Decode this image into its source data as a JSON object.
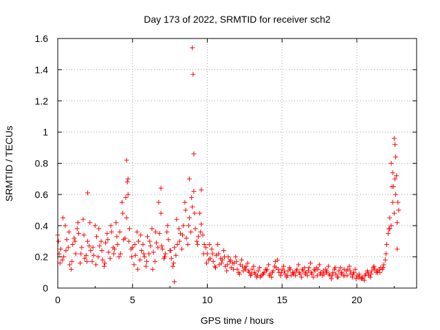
{
  "chart_data": {
    "type": "scatter",
    "title": "Day 173 of 2022, SRMTID for receiver sch2",
    "xlabel": "GPS time / hours",
    "ylabel": "SRMTID / TECUs",
    "xlim": [
      0,
      24
    ],
    "ylim": [
      0,
      1.6
    ],
    "xticks": [
      0,
      5,
      10,
      15,
      20
    ],
    "xtick_labels": [
      "0",
      "5",
      "10",
      "15",
      "20"
    ],
    "yticks": [
      0,
      0.2,
      0.4,
      0.6,
      0.8,
      1.0,
      1.2,
      1.4,
      1.6
    ],
    "ytick_labels": [
      "0",
      "0.2",
      "0.4",
      "0.6",
      "0.8",
      "1",
      "1.2",
      "1.4",
      "1.6"
    ],
    "grid": true,
    "marker": "+",
    "color": "#ff0000",
    "series": [
      {
        "name": "SRMTID",
        "x": [
          0.0,
          0.2,
          0.4,
          0.6,
          0.8,
          1.0,
          1.2,
          1.4,
          1.6,
          1.8,
          2.0,
          2.2,
          2.4,
          2.6,
          2.8,
          3.0,
          3.2,
          3.4,
          3.6,
          3.8,
          4.0,
          4.2,
          4.4,
          4.6,
          4.8,
          5.0,
          5.2,
          5.4,
          5.6,
          5.8,
          6.0,
          6.2,
          6.4,
          6.6,
          6.8,
          7.0,
          7.2,
          7.4,
          7.6,
          7.8,
          8.0,
          8.2,
          8.4,
          8.6,
          8.8,
          9.0,
          9.2,
          9.4,
          9.6,
          9.8,
          10.0,
          10.2,
          10.4,
          10.6,
          10.8,
          11.0,
          11.2,
          11.4,
          11.6,
          11.8,
          12.0,
          12.2,
          12.4,
          12.6,
          12.8,
          13.0,
          13.2,
          13.4,
          13.6,
          13.8,
          14.0,
          14.2,
          14.4,
          14.6,
          14.8,
          15.0,
          15.2,
          15.4,
          15.6,
          15.8,
          16.0,
          16.2,
          16.4,
          16.6,
          16.8,
          17.0,
          17.2,
          17.4,
          17.6,
          17.8,
          18.0,
          18.2,
          18.4,
          18.6,
          18.8,
          19.0,
          19.2,
          19.4,
          19.6,
          19.8,
          20.0,
          20.2,
          20.4,
          20.6,
          20.8,
          21.0,
          21.2,
          21.4,
          21.6,
          21.8,
          22.0,
          22.2,
          22.4,
          22.6,
          22.8,
          0.1,
          0.3,
          0.5,
          0.7,
          0.9,
          1.1,
          1.3,
          1.5,
          1.7,
          1.9,
          2.1,
          2.3,
          2.5,
          2.7,
          2.9,
          3.1,
          3.3,
          3.5,
          3.7,
          3.9,
          4.1,
          4.3,
          4.5,
          4.7,
          4.9,
          5.1,
          5.3,
          5.5,
          5.7,
          5.9,
          6.1,
          6.3,
          6.5,
          6.7,
          6.9,
          7.1,
          7.3,
          7.5,
          7.7,
          7.9,
          8.1,
          8.3,
          8.5,
          8.7,
          8.9,
          9.1,
          9.3,
          9.5,
          9.7,
          9.9,
          10.1,
          10.3,
          10.5,
          10.7,
          10.9,
          11.1,
          11.3,
          11.5,
          11.7,
          11.9,
          12.1,
          12.3,
          12.5,
          12.7,
          12.9,
          13.1,
          13.3,
          13.5,
          13.7,
          13.9,
          14.1,
          14.3,
          14.5,
          14.7,
          14.9,
          15.1,
          15.3,
          15.5,
          15.7,
          15.9,
          16.1,
          16.3,
          16.5,
          16.7,
          16.9,
          17.1,
          17.3,
          17.5,
          17.7,
          17.9,
          18.1,
          18.3,
          18.5,
          18.7,
          18.9,
          19.1,
          19.3,
          19.5,
          19.7,
          19.9,
          20.1,
          20.3,
          20.5,
          20.7,
          20.9,
          21.1,
          21.3,
          21.5,
          21.7,
          21.9,
          22.1,
          22.3,
          22.5,
          22.7,
          0.05,
          0.15,
          0.35,
          0.55,
          0.75,
          0.95,
          1.15,
          1.35,
          1.55,
          1.75,
          1.95,
          2.15,
          2.35,
          2.55,
          2.75,
          2.95,
          3.15,
          3.35,
          3.55,
          3.75,
          3.95,
          4.15,
          4.35,
          4.55,
          4.75,
          4.95,
          5.15,
          5.35,
          5.55,
          5.75,
          5.95,
          6.15,
          6.35,
          6.55,
          6.75,
          6.95,
          7.15,
          7.35,
          7.55,
          7.75,
          7.95,
          8.15,
          8.35,
          8.55,
          8.75,
          8.95,
          9.15,
          9.35,
          9.55,
          9.75,
          9.95,
          10.15,
          10.35,
          10.55,
          10.75,
          10.95,
          11.15,
          11.35,
          11.55,
          11.75,
          11.95,
          12.15,
          12.35,
          12.55,
          12.75,
          12.95,
          13.15,
          13.35,
          13.55,
          13.75,
          13.95,
          14.15,
          14.35,
          14.55,
          14.75,
          14.95,
          15.15,
          15.35,
          15.55,
          15.75,
          15.95,
          16.15,
          16.35,
          16.55,
          16.75,
          16.95,
          17.15,
          17.35,
          17.55,
          17.75,
          17.95,
          18.15,
          18.35,
          18.55,
          18.75,
          18.95,
          19.15,
          19.35,
          19.55,
          19.75,
          19.95,
          20.15,
          20.35,
          20.55,
          20.75,
          20.95,
          21.15,
          21.35,
          21.55,
          21.75,
          21.95,
          22.15,
          22.35,
          22.55,
          22.75,
          4.6,
          4.65,
          4.7,
          9.0,
          9.05,
          9.1,
          22.3,
          22.4,
          22.45,
          22.5,
          22.55,
          22.6,
          22.65,
          7.8,
          6.9,
          2.0,
          8.8,
          9.6,
          22.2,
          22.7
        ],
        "y": [
          0.34,
          0.25,
          0.2,
          0.31,
          0.15,
          0.28,
          0.22,
          0.35,
          0.26,
          0.19,
          0.3,
          0.24,
          0.21,
          0.33,
          0.27,
          0.18,
          0.29,
          0.23,
          0.36,
          0.25,
          0.28,
          0.22,
          0.31,
          0.45,
          0.38,
          0.26,
          0.21,
          0.3,
          0.24,
          0.2,
          0.33,
          0.27,
          0.23,
          0.29,
          0.35,
          0.25,
          0.22,
          0.31,
          0.19,
          0.26,
          0.28,
          0.35,
          0.4,
          0.32,
          0.45,
          0.52,
          0.38,
          0.33,
          0.41,
          0.28,
          0.22,
          0.19,
          0.17,
          0.21,
          0.15,
          0.18,
          0.14,
          0.2,
          0.13,
          0.16,
          0.12,
          0.15,
          0.11,
          0.14,
          0.1,
          0.12,
          0.09,
          0.11,
          0.08,
          0.1,
          0.12,
          0.09,
          0.11,
          0.13,
          0.1,
          0.12,
          0.09,
          0.11,
          0.08,
          0.1,
          0.12,
          0.09,
          0.11,
          0.1,
          0.13,
          0.09,
          0.11,
          0.12,
          0.1,
          0.09,
          0.11,
          0.08,
          0.1,
          0.09,
          0.11,
          0.1,
          0.08,
          0.12,
          0.09,
          0.1,
          0.08,
          0.07,
          0.06,
          0.09,
          0.08,
          0.11,
          0.12,
          0.1,
          0.13,
          0.15,
          0.28,
          0.45,
          0.55,
          0.6,
          0.5,
          0.22,
          0.18,
          0.4,
          0.26,
          0.12,
          0.32,
          0.38,
          0.16,
          0.44,
          0.21,
          0.27,
          0.17,
          0.4,
          0.2,
          0.3,
          0.14,
          0.35,
          0.19,
          0.26,
          0.42,
          0.2,
          0.55,
          0.32,
          0.6,
          0.25,
          0.15,
          0.36,
          0.18,
          0.28,
          0.14,
          0.22,
          0.38,
          0.17,
          0.26,
          0.48,
          0.19,
          0.36,
          0.24,
          0.14,
          0.21,
          0.38,
          0.25,
          0.55,
          0.28,
          0.36,
          0.62,
          0.3,
          0.48,
          0.34,
          0.26,
          0.18,
          0.25,
          0.14,
          0.28,
          0.19,
          0.24,
          0.11,
          0.17,
          0.16,
          0.2,
          0.1,
          0.18,
          0.13,
          0.16,
          0.08,
          0.14,
          0.07,
          0.13,
          0.09,
          0.12,
          0.15,
          0.07,
          0.14,
          0.18,
          0.08,
          0.14,
          0.07,
          0.13,
          0.1,
          0.08,
          0.15,
          0.07,
          0.13,
          0.08,
          0.16,
          0.07,
          0.13,
          0.15,
          0.08,
          0.12,
          0.14,
          0.06,
          0.12,
          0.07,
          0.13,
          0.08,
          0.11,
          0.14,
          0.07,
          0.12,
          0.07,
          0.06,
          0.05,
          0.11,
          0.07,
          0.13,
          0.1,
          0.12,
          0.12,
          0.18,
          0.35,
          0.4,
          0.48,
          0.42,
          0.3,
          0.16,
          0.45,
          0.24,
          0.36,
          0.17,
          0.3,
          0.42,
          0.22,
          0.34,
          0.17,
          0.42,
          0.26,
          0.15,
          0.38,
          0.24,
          0.16,
          0.31,
          0.4,
          0.22,
          0.33,
          0.36,
          0.48,
          0.58,
          0.3,
          0.2,
          0.28,
          0.12,
          0.34,
          0.22,
          0.17,
          0.3,
          0.12,
          0.36,
          0.55,
          0.27,
          0.2,
          0.4,
          0.24,
          0.16,
          0.44,
          0.3,
          0.34,
          0.5,
          0.4,
          0.58,
          0.48,
          0.28,
          0.36,
          0.22,
          0.16,
          0.28,
          0.22,
          0.13,
          0.22,
          0.16,
          0.2,
          0.15,
          0.18,
          0.12,
          0.17,
          0.09,
          0.14,
          0.12,
          0.11,
          0.09,
          0.1,
          0.08,
          0.07,
          0.09,
          0.11,
          0.08,
          0.1,
          0.17,
          0.12,
          0.1,
          0.11,
          0.08,
          0.12,
          0.09,
          0.11,
          0.1,
          0.12,
          0.09,
          0.11,
          0.1,
          0.12,
          0.08,
          0.09,
          0.11,
          0.1,
          0.09,
          0.08,
          0.13,
          0.07,
          0.09,
          0.12,
          0.08,
          0.11,
          0.09,
          0.06,
          0.09,
          0.07,
          0.08,
          0.1,
          0.09,
          0.14,
          0.11,
          0.1,
          0.13,
          0.22,
          0.38,
          0.65,
          0.7,
          0.55,
          0.82,
          0.68,
          0.7,
          1.54,
          1.37,
          0.86,
          0.8,
          0.74,
          0.65,
          0.96,
          0.92,
          0.84,
          0.72,
          0.04,
          0.64,
          0.61,
          0.7,
          0.63,
          0.38,
          0.25
        ]
      }
    ]
  }
}
